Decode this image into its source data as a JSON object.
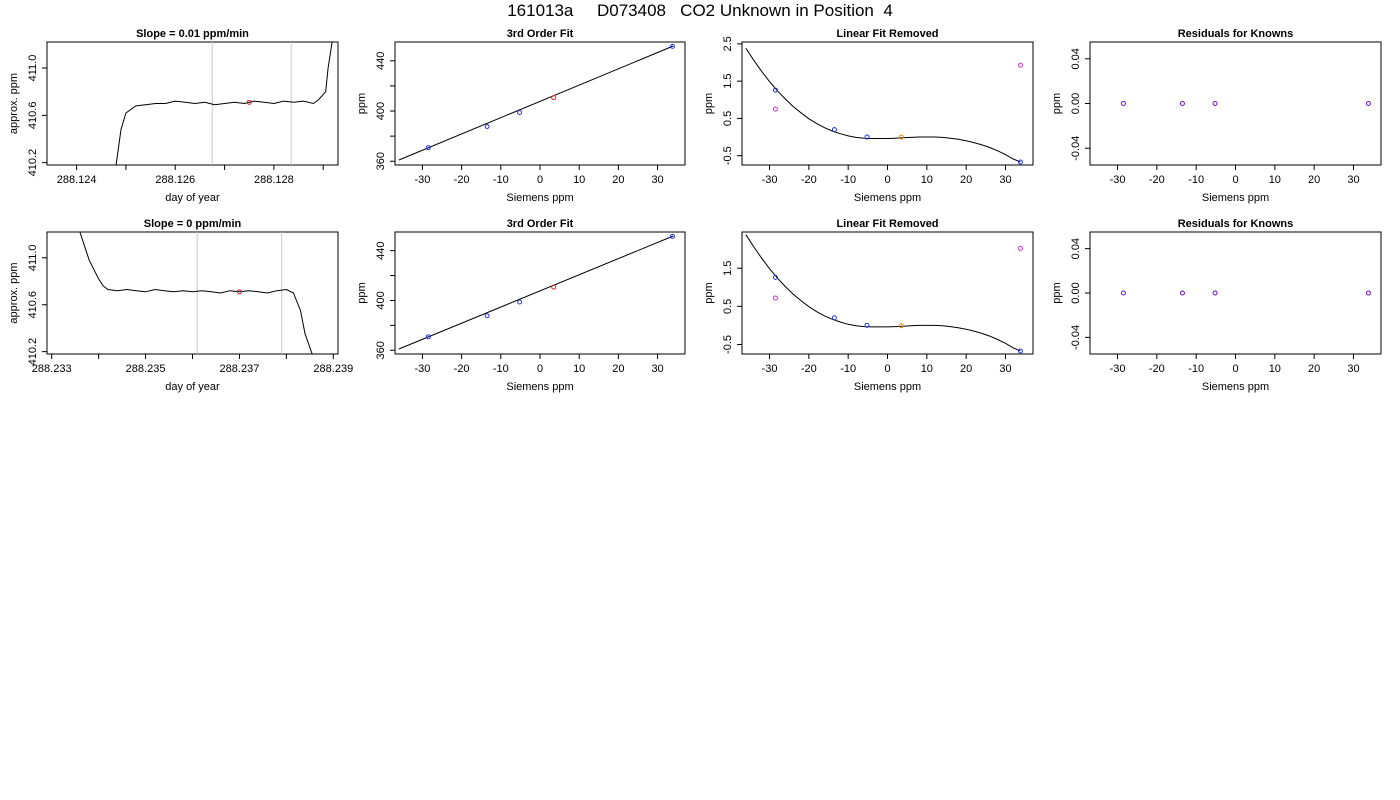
{
  "title": "161013a     D073408   CO2 Unknown in Position  4",
  "chart_data": [
    {
      "type": "line",
      "title": "Slope =  0.01  ppm/min",
      "xlabel": "day of year",
      "ylabel": "approx. ppm",
      "xlim": [
        288.1234,
        288.1293
      ],
      "ylim": [
        410.18,
        411.22
      ],
      "x_ticks": [
        288.124,
        288.125,
        288.126,
        288.127,
        288.128,
        288.129
      ],
      "x_tick_labels": [
        "288.124",
        "",
        "288.126",
        "",
        "288.128",
        ""
      ],
      "y_ticks": [
        410.2,
        410.6,
        411.0
      ],
      "y_tick_labels": [
        "410.2",
        "410.6",
        "411.0"
      ],
      "vlines": [
        288.12675,
        288.12835
      ],
      "marker": {
        "x": 288.1275,
        "y": 410.71
      },
      "series": [
        {
          "x": [
            288.1248,
            288.1249,
            288.125,
            288.1252,
            288.1254,
            288.1256,
            288.1258,
            288.126,
            288.1262,
            288.1264,
            288.1266,
            288.1268,
            288.127,
            288.1272,
            288.1274,
            288.1276,
            288.1278,
            288.128,
            288.1282,
            288.1284,
            288.1286,
            288.1288,
            288.1289,
            288.12905,
            288.1291,
            288.12918
          ],
          "y": [
            410.18,
            410.48,
            410.62,
            410.68,
            410.69,
            410.7,
            410.7,
            410.72,
            410.71,
            410.7,
            410.71,
            410.69,
            410.7,
            410.71,
            410.7,
            410.72,
            410.71,
            410.7,
            410.72,
            410.71,
            410.72,
            410.7,
            410.73,
            410.8,
            411.0,
            411.22
          ]
        }
      ]
    },
    {
      "type": "scatter",
      "title": "3rd Order Fit",
      "xlabel": "Siemens ppm",
      "ylabel": "ppm",
      "xlim": [
        -37,
        37
      ],
      "ylim": [
        357,
        455
      ],
      "x_ticks": [
        -30,
        -20,
        -10,
        0,
        10,
        20,
        30
      ],
      "x_tick_labels": [
        "-30",
        "-20",
        "-10",
        "0",
        "10",
        "20",
        "30"
      ],
      "y_ticks": [
        360,
        380,
        400,
        420,
        440
      ],
      "y_tick_labels": [
        "360",
        "",
        "400",
        "",
        "440"
      ],
      "known_points": {
        "x": [
          -28.5,
          -13.5,
          -5.2,
          33.8
        ],
        "y": [
          370.8,
          387.7,
          398.8,
          451.5
        ]
      },
      "unknown_point": {
        "x": 3.5,
        "y": 410.7
      },
      "fit_line": {
        "x": [
          -36,
          34
        ],
        "y": [
          361.0,
          451.8
        ]
      }
    },
    {
      "type": "scatter",
      "title": "Linear Fit Removed",
      "xlabel": "Siemens ppm",
      "ylabel": "ppm",
      "xlim": [
        -37,
        37
      ],
      "ylim": [
        -0.75,
        2.55
      ],
      "x_ticks": [
        -30,
        -20,
        -10,
        0,
        10,
        20,
        30
      ],
      "x_tick_labels": [
        "-30",
        "-20",
        "-10",
        "0",
        "10",
        "20",
        "30"
      ],
      "y_ticks": [
        -0.5,
        0.5,
        1.5,
        2.5
      ],
      "y_tick_labels": [
        "-0.5",
        "0.5",
        "1.5",
        "2.5"
      ],
      "known_points": {
        "x": [
          -28.5,
          -13.5,
          -5.2,
          33.8
        ],
        "y": [
          1.26,
          0.2,
          0.0,
          -0.67
        ]
      },
      "magenta_points": {
        "x": [
          -28.5,
          33.8
        ],
        "y": [
          0.75,
          1.93
        ]
      },
      "unknown_point": {
        "x": 3.5,
        "y": 0.0
      },
      "fit_curve": {
        "x": [
          -36,
          -34,
          -32,
          -30,
          -28,
          -26,
          -24,
          -22,
          -20,
          -18,
          -16,
          -14,
          -12,
          -10,
          -8,
          -6,
          -4,
          -2,
          0,
          2,
          4,
          6,
          8,
          10,
          12,
          14,
          16,
          18,
          20,
          22,
          24,
          26,
          28,
          30,
          32,
          33.8
        ],
        "y": [
          2.38,
          2.06,
          1.76,
          1.49,
          1.24,
          1.02,
          0.82,
          0.65,
          0.49,
          0.36,
          0.25,
          0.16,
          0.09,
          0.03,
          -0.01,
          -0.03,
          -0.04,
          -0.04,
          -0.04,
          -0.03,
          -0.02,
          -0.01,
          0.0,
          0.0,
          0.0,
          -0.01,
          -0.03,
          -0.06,
          -0.1,
          -0.15,
          -0.21,
          -0.28,
          -0.37,
          -0.47,
          -0.59,
          -0.67
        ]
      }
    },
    {
      "type": "scatter",
      "title": "Residuals for Knowns",
      "xlabel": "Siemens ppm",
      "ylabel": "ppm",
      "xlim": [
        -37,
        37
      ],
      "ylim": [
        -0.055,
        0.055
      ],
      "x_ticks": [
        -30,
        -20,
        -10,
        0,
        10,
        20,
        30
      ],
      "x_tick_labels": [
        "-30",
        "-20",
        "-10",
        "0",
        "10",
        "20",
        "30"
      ],
      "y_ticks": [
        -0.04,
        0.0,
        0.04
      ],
      "y_tick_labels": [
        "-0.04",
        "0.00",
        "0.04"
      ],
      "known_points": {
        "x": [
          -28.5,
          -13.5,
          -5.2,
          33.8
        ],
        "y": [
          0,
          0,
          0,
          0
        ]
      }
    },
    {
      "type": "line",
      "title": "Slope =  0  ppm/min",
      "xlabel": "day of year",
      "ylabel": "approx. ppm",
      "xlim": [
        288.2329,
        288.2391
      ],
      "ylim": [
        410.18,
        411.22
      ],
      "x_ticks": [
        288.233,
        288.234,
        288.235,
        288.236,
        288.237,
        288.238,
        288.239
      ],
      "x_tick_labels": [
        "288.233",
        "",
        "288.235",
        "",
        "288.237",
        "",
        "288.239"
      ],
      "y_ticks": [
        410.2,
        410.6,
        411.0
      ],
      "y_tick_labels": [
        "410.2",
        "410.6",
        "411.0"
      ],
      "vlines": [
        288.2361,
        288.2379
      ],
      "marker": {
        "x": 288.237,
        "y": 410.71
      },
      "series": [
        {
          "x": [
            288.2336,
            288.2338,
            288.234,
            288.2341,
            288.2342,
            288.2344,
            288.2346,
            288.2348,
            288.235,
            288.2352,
            288.2354,
            288.2356,
            288.2358,
            288.236,
            288.2362,
            288.2364,
            288.2366,
            288.2368,
            288.237,
            288.2372,
            288.2374,
            288.2376,
            288.2378,
            288.238,
            288.23815,
            288.2383,
            288.2384,
            288.23855
          ],
          "y": [
            411.22,
            410.98,
            410.82,
            410.76,
            410.73,
            410.72,
            410.73,
            410.72,
            410.71,
            410.73,
            410.72,
            410.71,
            410.72,
            410.71,
            410.72,
            410.71,
            410.7,
            410.72,
            410.71,
            410.72,
            410.71,
            410.7,
            410.72,
            410.73,
            410.7,
            410.55,
            410.35,
            410.18
          ]
        }
      ]
    },
    {
      "type": "scatter",
      "title": "3rd Order Fit",
      "xlabel": "Siemens ppm",
      "ylabel": "ppm",
      "xlim": [
        -37,
        37
      ],
      "ylim": [
        357,
        455
      ],
      "x_ticks": [
        -30,
        -20,
        -10,
        0,
        10,
        20,
        30
      ],
      "x_tick_labels": [
        "-30",
        "-20",
        "-10",
        "0",
        "10",
        "20",
        "30"
      ],
      "y_ticks": [
        360,
        380,
        400,
        420,
        440
      ],
      "y_tick_labels": [
        "360",
        "",
        "400",
        "",
        "440"
      ],
      "known_points": {
        "x": [
          -28.5,
          -13.5,
          -5.2,
          33.8
        ],
        "y": [
          370.8,
          387.7,
          398.8,
          451.5
        ]
      },
      "unknown_point": {
        "x": 3.5,
        "y": 410.7
      },
      "fit_line": {
        "x": [
          -36,
          34
        ],
        "y": [
          361.0,
          451.8
        ]
      }
    },
    {
      "type": "scatter",
      "title": "Linear Fit Removed",
      "xlabel": "Siemens ppm",
      "ylabel": "ppm",
      "xlim": [
        -37,
        37
      ],
      "ylim": [
        -0.75,
        2.45
      ],
      "x_ticks": [
        -30,
        -20,
        -10,
        0,
        10,
        20,
        30
      ],
      "x_tick_labels": [
        "-30",
        "-20",
        "-10",
        "0",
        "10",
        "20",
        "30"
      ],
      "y_ticks": [
        -0.5,
        0.5,
        1.5
      ],
      "y_tick_labels": [
        "-0.5",
        "0.5",
        "1.5"
      ],
      "known_points": {
        "x": [
          -28.5,
          -13.5,
          -5.2,
          33.8
        ],
        "y": [
          1.26,
          0.2,
          0.0,
          -0.67
        ]
      },
      "magenta_points": {
        "x": [
          -28.5,
          33.8
        ],
        "y": [
          0.72,
          2.02
        ]
      },
      "unknown_point": {
        "x": 3.5,
        "y": -0.01
      },
      "fit_curve": {
        "x": [
          -36,
          -34,
          -32,
          -30,
          -28,
          -26,
          -24,
          -22,
          -20,
          -18,
          -16,
          -14,
          -12,
          -10,
          -8,
          -6,
          -4,
          -2,
          0,
          2,
          4,
          6,
          8,
          10,
          12,
          14,
          16,
          18,
          20,
          22,
          24,
          26,
          28,
          30,
          32,
          33.8
        ],
        "y": [
          2.38,
          2.06,
          1.76,
          1.49,
          1.24,
          1.02,
          0.82,
          0.65,
          0.49,
          0.36,
          0.25,
          0.16,
          0.09,
          0.03,
          -0.01,
          -0.03,
          -0.04,
          -0.04,
          -0.04,
          -0.03,
          -0.02,
          -0.01,
          0.0,
          0.0,
          0.0,
          -0.01,
          -0.03,
          -0.06,
          -0.1,
          -0.15,
          -0.21,
          -0.28,
          -0.37,
          -0.47,
          -0.59,
          -0.67
        ]
      }
    },
    {
      "type": "scatter",
      "title": "Residuals for Knowns",
      "xlabel": "Siemens ppm",
      "ylabel": "ppm",
      "xlim": [
        -37,
        37
      ],
      "ylim": [
        -0.055,
        0.055
      ],
      "x_ticks": [
        -30,
        -20,
        -10,
        0,
        10,
        20,
        30
      ],
      "x_tick_labels": [
        "-30",
        "-20",
        "-10",
        "0",
        "10",
        "20",
        "30"
      ],
      "y_ticks": [
        -0.04,
        0.0,
        0.04
      ],
      "y_tick_labels": [
        "-0.04",
        "0.00",
        "0.04"
      ],
      "known_points": {
        "x": [
          -28.5,
          -13.5,
          -5.2,
          33.8
        ],
        "y": [
          0,
          0,
          0,
          0
        ]
      }
    }
  ],
  "colors": {
    "known": "#2233dd",
    "unknown": "#dd2222",
    "magenta": "#cc33cc",
    "orange": "#ee8800",
    "residual": "#6611cc",
    "vline": "#c8c8c8",
    "line": "#000000"
  }
}
